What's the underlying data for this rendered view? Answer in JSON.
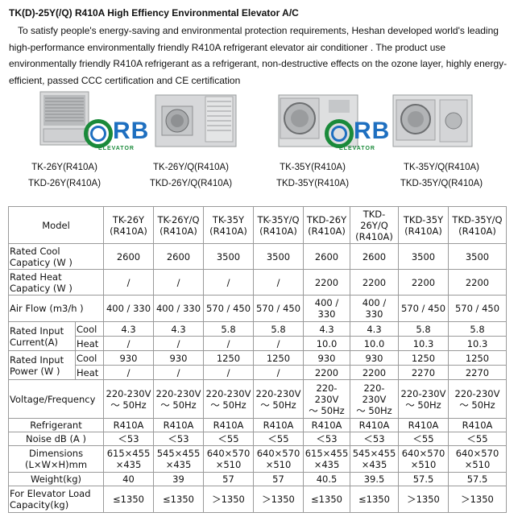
{
  "title": "TK(D)-25Y(/Q) R410A High Effiency Environmental Elevator A/C",
  "intro": "To satisfy people's energy-saving and environmental protection requirements, Heshan developed world's leading high-performance environmentally friendly R410A refrigerant elevator air conditioner . The product use environmentally friendly R410A refrigerant as a refrigerant, non-destructive effects on the ozone layer, highly energy-efficient, passed CCC certification and CE certification",
  "logo": {
    "text": "RB",
    "sub": "ELEVATOR"
  },
  "products": [
    {
      "line1": "TK-26Y(R410A)",
      "line2": "TKD-26Y(R410A)"
    },
    {
      "line1": "TK-26Y/Q(R410A)",
      "line2": "TKD-26Y/Q(R410A)"
    },
    {
      "line1": "TK-35Y(R410A)",
      "line2": "TKD-35Y(R410A)"
    },
    {
      "line1": "TK-35Y/Q(R410A)",
      "line2": "TKD-35Y/Q(R410A)"
    }
  ],
  "table": {
    "model_label": "Model",
    "models": [
      [
        "TK-26Y",
        "(R410A)"
      ],
      [
        "TK-26Y/Q",
        "(R410A)"
      ],
      [
        "TK-35Y",
        "(R410A)"
      ],
      [
        "TK-35Y/Q",
        "(R410A)"
      ],
      [
        "TKD-26Y",
        "(R410A)"
      ],
      [
        "TKD-",
        "26Y/Q",
        "(R410A)"
      ],
      [
        "TKD-35Y",
        "(R410A)"
      ],
      [
        "TKD-35Y/Q",
        "(R410A)"
      ]
    ],
    "rows": {
      "cool_cap": {
        "label": [
          "Rated Cool",
          "Capaticy (W )"
        ],
        "values": [
          "2600",
          "2600",
          "3500",
          "3500",
          "2600",
          "2600",
          "3500",
          "3500"
        ]
      },
      "heat_cap": {
        "label": [
          "Rated Heat",
          "Capaticy (W )"
        ],
        "values": [
          "/",
          "/",
          "/",
          "/",
          "2200",
          "2200",
          "2200",
          "2200"
        ]
      },
      "airflow": {
        "label": [
          "Air Flow (m3/h )"
        ],
        "values": [
          [
            "400 / 330"
          ],
          [
            "400 / 330"
          ],
          [
            "570 / 450"
          ],
          [
            "570 / 450"
          ],
          [
            "400 /",
            "330"
          ],
          [
            "400 /",
            "330"
          ],
          [
            "570 / 450"
          ],
          [
            "570 / 450"
          ]
        ]
      },
      "current_label": [
        "Rated Input",
        "Current(A)"
      ],
      "current_cool": {
        "sub": "Cool",
        "values": [
          "4.3",
          "4.3",
          "5.8",
          "5.8",
          "4.3",
          "4.3",
          "5.8",
          "5.8"
        ]
      },
      "current_heat": {
        "sub": "Heat",
        "values": [
          "/",
          "/",
          "/",
          "/",
          "10.0",
          "10.0",
          "10.3",
          "10.3"
        ]
      },
      "power_label": [
        "Rated Input",
        "Power (W )"
      ],
      "power_cool": {
        "sub": "Cool",
        "values": [
          "930",
          "930",
          "1250",
          "1250",
          "930",
          "930",
          "1250",
          "1250"
        ]
      },
      "power_heat": {
        "sub": "Heat",
        "values": [
          "/",
          "/",
          "/",
          "/",
          "2200",
          "2200",
          "2270",
          "2270"
        ]
      },
      "voltage": {
        "label": [
          "Voltage/Frequency"
        ],
        "values": [
          [
            "220-230V",
            "～ 50Hz"
          ],
          [
            "220-230V",
            "～ 50Hz"
          ],
          [
            "220-230V",
            "～ 50Hz"
          ],
          [
            "220-230V",
            "～ 50Hz"
          ],
          [
            "220-",
            "230V",
            "～ 50Hz"
          ],
          [
            "220-",
            "230V",
            "～ 50Hz"
          ],
          [
            "220-230V",
            "～ 50Hz"
          ],
          [
            "220-230V",
            "～ 50Hz"
          ]
        ]
      },
      "refrigerant": {
        "label": [
          "Refrigerant"
        ],
        "values": [
          "R410A",
          "R410A",
          "R410A",
          "R410A",
          "R410A",
          "R410A",
          "R410A",
          "R410A"
        ]
      },
      "noise": {
        "label": [
          "Noise dB (A )"
        ],
        "values": [
          "＜53",
          "＜53",
          "＜55",
          "＜55",
          "＜53",
          "＜53",
          "＜55",
          "＜55"
        ]
      },
      "dims": {
        "label": [
          "Dimensions",
          "(L×W×H)mm"
        ],
        "values": [
          [
            "615×455",
            "×435"
          ],
          [
            "545×455",
            "×435"
          ],
          [
            "640×570",
            "×510"
          ],
          [
            "640×570",
            "×510"
          ],
          [
            "615×455",
            "×435"
          ],
          [
            "545×455",
            "×435"
          ],
          [
            "640×570",
            "×510"
          ],
          [
            "640×570",
            "×510"
          ]
        ]
      },
      "weight": {
        "label": [
          "Weight(kg)"
        ],
        "values": [
          "40",
          "39",
          "57",
          "57",
          "40.5",
          "39.5",
          "57.5",
          "57.5"
        ]
      },
      "load": {
        "label": [
          "For Elevator Load",
          "Capacity(kg)"
        ],
        "values": [
          "≤1350",
          "≤1350",
          "＞1350",
          "＞1350",
          "≤1350",
          "≤1350",
          "＞1350",
          "＞1350"
        ]
      }
    }
  }
}
